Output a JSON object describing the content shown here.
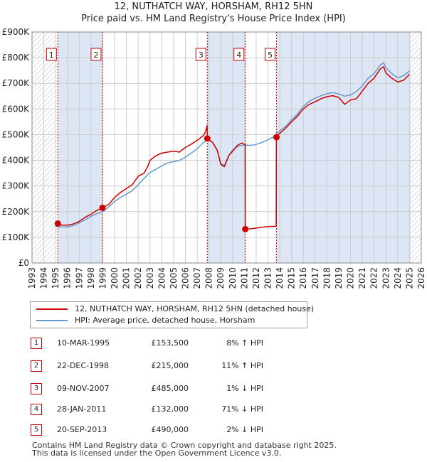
{
  "title": "12, NUTHATCH WAY, HORSHAM, RH12 5HN",
  "subtitle": "Price paid vs. HM Land Registry's House Price Index (HPI)",
  "colors": {
    "price": "#cc0000",
    "hpi": "#6699cc",
    "shade": "#dde6f4",
    "grid": "#cccccc"
  },
  "legend": {
    "price_label": "12, NUTHATCH WAY, HORSHAM, RH12 5HN (detached house)",
    "hpi_label": "HPI: Average price, detached house, Horsham"
  },
  "chart_data": {
    "type": "line",
    "title": "Price paid vs. HM Land Registry's House Price Index (HPI)",
    "xlim": [
      1993,
      2026
    ],
    "ylim": [
      0,
      900000
    ],
    "x_ticks": [
      "1993",
      "1994",
      "1995",
      "1996",
      "1997",
      "1998",
      "1999",
      "2000",
      "2001",
      "2002",
      "2003",
      "2004",
      "2005",
      "2006",
      "2007",
      "2008",
      "2009",
      "2010",
      "2011",
      "2012",
      "2013",
      "2014",
      "2015",
      "2016",
      "2017",
      "2018",
      "2019",
      "2020",
      "2021",
      "2022",
      "2023",
      "2024",
      "2025",
      "2026"
    ],
    "y_ticks": [
      {
        "value": 0,
        "label": "£0"
      },
      {
        "value": 100000,
        "label": "£100K"
      },
      {
        "value": 200000,
        "label": "£200K"
      },
      {
        "value": 300000,
        "label": "£300K"
      },
      {
        "value": 400000,
        "label": "£400K"
      },
      {
        "value": 500000,
        "label": "£500K"
      },
      {
        "value": 600000,
        "label": "£600K"
      },
      {
        "value": 700000,
        "label": "£700K"
      },
      {
        "value": 800000,
        "label": "£800K"
      },
      {
        "value": 900000,
        "label": "£900K"
      }
    ],
    "series": [
      {
        "name": "12, NUTHATCH WAY, HORSHAM, RH12 5HN (detached house)",
        "points": [
          [
            1995.19,
            153500
          ],
          [
            1995.5,
            148000
          ],
          [
            1996.0,
            147000
          ],
          [
            1996.5,
            152000
          ],
          [
            1997.0,
            162000
          ],
          [
            1997.5,
            178000
          ],
          [
            1998.0,
            190000
          ],
          [
            1998.5,
            205000
          ],
          [
            1998.97,
            215000
          ],
          [
            1999.5,
            228000
          ],
          [
            2000.0,
            255000
          ],
          [
            2000.5,
            275000
          ],
          [
            2001.0,
            290000
          ],
          [
            2001.5,
            305000
          ],
          [
            2002.0,
            338000
          ],
          [
            2002.5,
            350000
          ],
          [
            2002.8,
            375000
          ],
          [
            2003.0,
            400000
          ],
          [
            2003.5,
            418000
          ],
          [
            2004.0,
            428000
          ],
          [
            2004.5,
            432000
          ],
          [
            2005.0,
            436000
          ],
          [
            2005.5,
            432000
          ],
          [
            2006.0,
            450000
          ],
          [
            2006.5,
            463000
          ],
          [
            2007.0,
            478000
          ],
          [
            2007.5,
            495000
          ],
          [
            2007.7,
            510000
          ],
          [
            2007.85,
            535000
          ],
          [
            2007.86,
            485000
          ],
          [
            2008.3,
            470000
          ],
          [
            2008.7,
            440000
          ],
          [
            2009.0,
            385000
          ],
          [
            2009.3,
            375000
          ],
          [
            2009.7,
            420000
          ],
          [
            2010.0,
            435000
          ],
          [
            2010.4,
            458000
          ],
          [
            2010.8,
            468000
          ],
          [
            2011.0,
            462000
          ],
          [
            2011.07,
            460000
          ],
          [
            2011.08,
            132000
          ],
          [
            2011.5,
            133000
          ],
          [
            2012.0,
            136000
          ],
          [
            2012.5,
            139000
          ],
          [
            2013.0,
            142000
          ],
          [
            2013.7,
            143000
          ],
          [
            2013.72,
            490000
          ],
          [
            2014.0,
            505000
          ],
          [
            2014.5,
            525000
          ],
          [
            2015.0,
            550000
          ],
          [
            2015.5,
            572000
          ],
          [
            2016.0,
            600000
          ],
          [
            2016.5,
            618000
          ],
          [
            2017.0,
            628000
          ],
          [
            2017.5,
            640000
          ],
          [
            2018.0,
            648000
          ],
          [
            2018.5,
            652000
          ],
          [
            2019.0,
            645000
          ],
          [
            2019.5,
            618000
          ],
          [
            2020.0,
            635000
          ],
          [
            2020.5,
            640000
          ],
          [
            2021.0,
            670000
          ],
          [
            2021.5,
            700000
          ],
          [
            2022.0,
            720000
          ],
          [
            2022.5,
            755000
          ],
          [
            2022.8,
            765000
          ],
          [
            2023.0,
            740000
          ],
          [
            2023.5,
            720000
          ],
          [
            2024.0,
            705000
          ],
          [
            2024.5,
            712000
          ],
          [
            2025.0,
            735000
          ]
        ]
      },
      {
        "name": "HPI: Average price, detached house, Horsham",
        "points": [
          [
            1995.0,
            143000
          ],
          [
            1995.5,
            141000
          ],
          [
            1996.0,
            140000
          ],
          [
            1996.5,
            146000
          ],
          [
            1997.0,
            156000
          ],
          [
            1997.5,
            168000
          ],
          [
            1998.0,
            182000
          ],
          [
            1998.5,
            192000
          ],
          [
            1999.0,
            200000
          ],
          [
            1999.5,
            218000
          ],
          [
            2000.0,
            240000
          ],
          [
            2000.5,
            255000
          ],
          [
            2001.0,
            268000
          ],
          [
            2001.5,
            282000
          ],
          [
            2002.0,
            305000
          ],
          [
            2002.5,
            330000
          ],
          [
            2003.0,
            352000
          ],
          [
            2003.5,
            365000
          ],
          [
            2004.0,
            378000
          ],
          [
            2004.5,
            390000
          ],
          [
            2005.0,
            395000
          ],
          [
            2005.5,
            400000
          ],
          [
            2006.0,
            412000
          ],
          [
            2006.5,
            428000
          ],
          [
            2007.0,
            445000
          ],
          [
            2007.5,
            468000
          ],
          [
            2007.9,
            482000
          ],
          [
            2008.3,
            470000
          ],
          [
            2008.7,
            440000
          ],
          [
            2009.0,
            388000
          ],
          [
            2009.3,
            380000
          ],
          [
            2009.7,
            420000
          ],
          [
            2010.0,
            440000
          ],
          [
            2010.5,
            455000
          ],
          [
            2011.0,
            460000
          ],
          [
            2011.5,
            458000
          ],
          [
            2012.0,
            462000
          ],
          [
            2012.5,
            470000
          ],
          [
            2013.0,
            480000
          ],
          [
            2013.5,
            492000
          ],
          [
            2014.0,
            515000
          ],
          [
            2014.5,
            532000
          ],
          [
            2015.0,
            558000
          ],
          [
            2015.5,
            580000
          ],
          [
            2016.0,
            610000
          ],
          [
            2016.5,
            630000
          ],
          [
            2017.0,
            642000
          ],
          [
            2017.5,
            652000
          ],
          [
            2018.0,
            660000
          ],
          [
            2018.5,
            664000
          ],
          [
            2019.0,
            658000
          ],
          [
            2019.5,
            650000
          ],
          [
            2020.0,
            655000
          ],
          [
            2020.5,
            668000
          ],
          [
            2021.0,
            690000
          ],
          [
            2021.5,
            720000
          ],
          [
            2022.0,
            738000
          ],
          [
            2022.5,
            770000
          ],
          [
            2022.8,
            780000
          ],
          [
            2023.0,
            760000
          ],
          [
            2023.5,
            738000
          ],
          [
            2024.0,
            722000
          ],
          [
            2024.5,
            730000
          ],
          [
            2025.0,
            748000
          ]
        ]
      }
    ],
    "sales": [
      {
        "id": "1",
        "x": 1995.19,
        "price": 153500
      },
      {
        "id": "2",
        "x": 1998.97,
        "price": 215000
      },
      {
        "id": "3",
        "x": 2007.86,
        "price": 485000
      },
      {
        "id": "4",
        "x": 2011.08,
        "price": 132000
      },
      {
        "id": "5",
        "x": 2013.72,
        "price": 490000
      }
    ]
  },
  "transactions": [
    {
      "num": "1",
      "date": "10-MAR-1995",
      "price": "£153,500",
      "hpi": "8% ↑ HPI"
    },
    {
      "num": "2",
      "date": "22-DEC-1998",
      "price": "£215,000",
      "hpi": "11% ↑ HPI"
    },
    {
      "num": "3",
      "date": "09-NOV-2007",
      "price": "£485,000",
      "hpi": "1% ↓ HPI"
    },
    {
      "num": "4",
      "date": "28-JAN-2011",
      "price": "£132,000",
      "hpi": "71% ↓ HPI"
    },
    {
      "num": "5",
      "date": "20-SEP-2013",
      "price": "£490,000",
      "hpi": "2% ↓ HPI"
    }
  ],
  "footer": {
    "line1": "Contains HM Land Registry data © Crown copyright and database right 2025.",
    "line2": "This data is licensed under the Open Government Licence v3.0."
  }
}
